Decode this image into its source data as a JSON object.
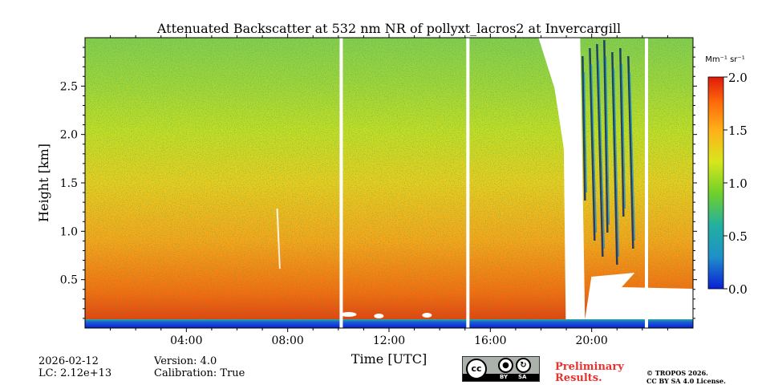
{
  "chart_data": {
    "type": "heatmap",
    "title": "Attenuated Backscatter at 532 nm NR of pollyxt_lacros2 at Invercargill",
    "xlabel": "Time [UTC]",
    "ylabel": "Height [km]",
    "x_range_hours": [
      0,
      24
    ],
    "ylim_km": [
      0,
      3.0
    ],
    "x_ticks": [
      {
        "hour": 4,
        "label": "04:00"
      },
      {
        "hour": 8,
        "label": "08:00"
      },
      {
        "hour": 12,
        "label": "12:00"
      },
      {
        "hour": 16,
        "label": "16:00"
      },
      {
        "hour": 20,
        "label": "20:00"
      }
    ],
    "y_ticks": [
      {
        "value": 0.5,
        "label": "0.5"
      },
      {
        "value": 1.0,
        "label": "1.0"
      },
      {
        "value": 1.5,
        "label": "1.5"
      },
      {
        "value": 2.0,
        "label": "2.0"
      },
      {
        "value": 2.5,
        "label": "2.5"
      }
    ],
    "colorbar": {
      "unit": "Mm⁻¹ sr⁻¹",
      "range": [
        0.0,
        2.0
      ],
      "ticks": [
        {
          "value": 0.0,
          "label": "0.0"
        },
        {
          "value": 0.5,
          "label": "0.5"
        },
        {
          "value": 1.0,
          "label": "1.0"
        },
        {
          "value": 1.5,
          "label": "1.5"
        },
        {
          "value": 2.0,
          "label": "2.0"
        }
      ],
      "colormap": [
        "#0a1fd6",
        "#1e90c8",
        "#22b0a0",
        "#6fd02a",
        "#d8e61c",
        "#ffb019",
        "#ff6a0a",
        "#e01a0a"
      ]
    },
    "data_gaps_hours": [
      [
        10.05,
        10.15
      ],
      [
        15.05,
        15.15
      ],
      [
        22.1,
        22.2
      ]
    ],
    "cloud_event": {
      "start_hour": 17.9,
      "end_hour": 21.5,
      "min_height_km": 0.45
    }
  },
  "footer": {
    "date": "2026-02-12",
    "lc": "LC: 2.12e+13",
    "version": "Version: 4.0",
    "calibration": "Calibration: True",
    "preliminary_line1": "Preliminary",
    "preliminary_line2": "Results.",
    "copyright_line1": "© TROPOS 2026.",
    "copyright_line2": "CC BY SA 4.0 License.",
    "license_by": "BY",
    "license_sa": "SA",
    "license_cc": "cc"
  }
}
